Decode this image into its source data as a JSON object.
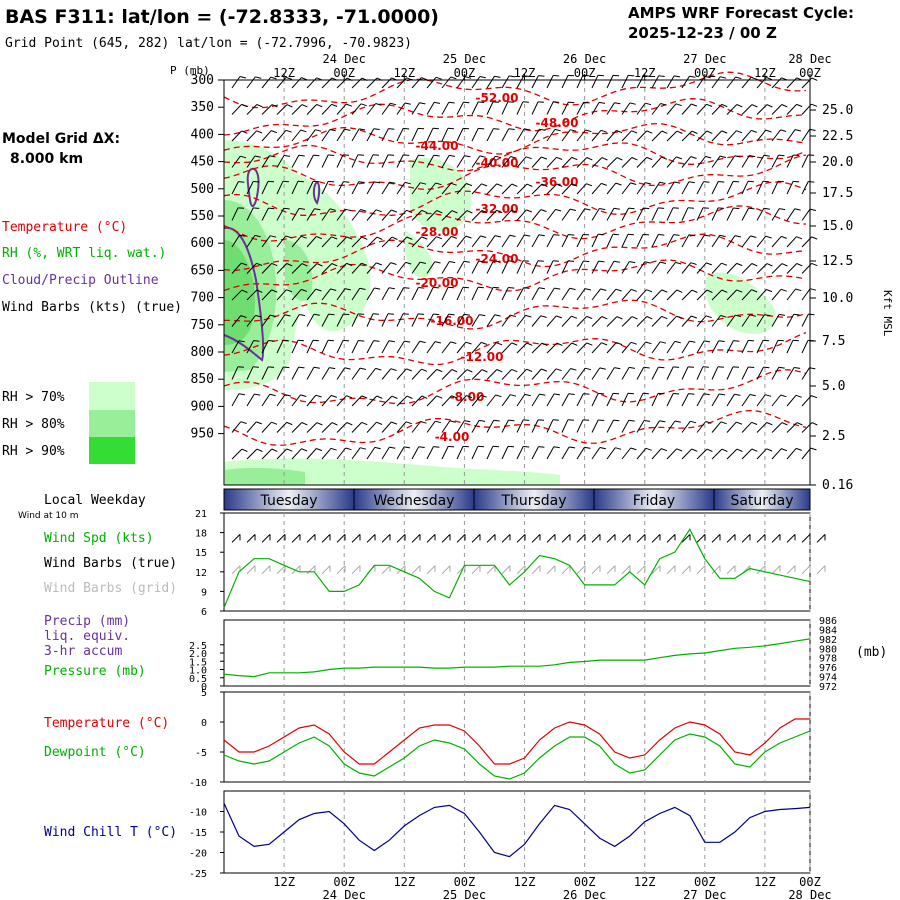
{
  "header": {
    "title": "BAS F311:  lat/lon = (-72.8333, -71.0000)",
    "subtitle": "Grid Point (645, 282) lat/lon = (-72.7996, -70.9823)",
    "cycle_line1": "AMPS WRF Forecast Cycle:",
    "cycle_line2": "2025-12-23 / 00  Z"
  },
  "side": {
    "model_grid_line1": "Model Grid ΔX:",
    "model_grid_line2": "8.000 km",
    "legend_temperature": "Temperature (°C)",
    "legend_rh": "RH (%, WRT liq. wat.)",
    "legend_cloud": "Cloud/Precip Outline",
    "legend_wind": "Wind Barbs (kts) (true)",
    "rh_70": "RH > 70%",
    "rh_80": "RH > 80%",
    "rh_90": "RH > 90%",
    "local_weekday": "Local Weekday",
    "wind_at": "Wind at 10 m",
    "wind_spd": "Wind Spd (kts)",
    "wind_barbs_true": "Wind Barbs (true)",
    "wind_barbs_grid": "Wind Barbs (grid)",
    "precip_l1": "Precip (mm)",
    "precip_l2": "liq. equiv.",
    "precip_l3": "3-hr accum",
    "pressure": "Pressure (mb)",
    "temperature": "Temperature (°C)",
    "dewpoint": "Dewpoint (°C)",
    "wind_chill": "Wind Chill T (°C)"
  },
  "colors": {
    "temperature": "#e00000",
    "rh": "#00b000",
    "cloud": "#663399",
    "wind_chill": "#00008b",
    "rh70": "#ccffcc",
    "rh80": "#99ee99",
    "rh90": "#33dd33"
  },
  "chart_data": [
    {
      "type": "contour",
      "panel": "cross-section",
      "y_axis_label": "P (mb)",
      "right_axis_label": "Kft MSL",
      "pressure_ticks": [
        "300",
        "350",
        "400",
        "450",
        "500",
        "550",
        "600",
        "650",
        "700",
        "750",
        "800",
        "850",
        "900",
        "950"
      ],
      "height_ticks": [
        "25.0",
        "22.5",
        "20.0",
        "17.5",
        "15.0",
        "12.5",
        "10.0",
        "7.5",
        "5.0",
        "2.5",
        "0.16"
      ],
      "time_ticks_top": [
        "12Z",
        "00Z",
        "12Z",
        "00Z",
        "12Z",
        "00Z",
        "12Z",
        "00Z",
        "12Z",
        "00Z"
      ],
      "date_ticks": [
        "24 Dec",
        "25 Dec",
        "26 Dec",
        "27 Dec",
        "28 Dec"
      ],
      "temperature_labels": [
        "-52.00",
        "-48.00",
        "-44.00",
        "-40.00",
        "-36.00",
        "-32.00",
        "-28.00",
        "-24.00",
        "-20.00",
        "-16.00",
        "-12.00",
        "-8.00",
        "-4.00"
      ]
    },
    {
      "type": "band",
      "panel": "weekday",
      "days": [
        "Tuesday",
        "Wednesday",
        "Thursday",
        "Friday",
        "Saturday"
      ]
    },
    {
      "type": "line",
      "panel": "wind",
      "series_name": "Wind Spd (kts)",
      "y_ticks": [
        "6",
        "9",
        "12",
        "15",
        "18",
        "21"
      ],
      "ylim": [
        6,
        21
      ],
      "x_hours": [
        0,
        3,
        6,
        9,
        12,
        15,
        18,
        21,
        24,
        27,
        30,
        33,
        36,
        39,
        42,
        45,
        48,
        51,
        54,
        57,
        60,
        63,
        66,
        69,
        72,
        75,
        78,
        81,
        84,
        87,
        90,
        93,
        96,
        99,
        102,
        105,
        108,
        111,
        114,
        117
      ],
      "values": [
        6.5,
        12,
        14,
        14,
        13,
        12,
        12,
        9,
        9,
        10,
        13,
        13,
        12,
        11,
        9,
        8,
        13,
        13,
        13,
        10,
        12,
        14.5,
        14,
        13,
        10,
        10,
        10,
        12,
        10,
        14,
        15,
        18.5,
        14,
        11,
        11,
        12.5,
        12,
        11.5,
        11,
        10.5
      ]
    },
    {
      "type": "line",
      "panel": "precip-pressure",
      "series_name": "Pressure (mb)",
      "left_ticks": [
        "0",
        "0.5",
        "1.0",
        "1.5",
        "2.0",
        "2.5"
      ],
      "right_ticks": [
        "972",
        "974",
        "976",
        "978",
        "980",
        "982",
        "984",
        "986"
      ],
      "ylim": [
        972,
        986
      ],
      "x_hours": [
        0,
        3,
        6,
        9,
        12,
        15,
        18,
        21,
        24,
        27,
        30,
        33,
        36,
        39,
        42,
        45,
        48,
        51,
        54,
        57,
        60,
        63,
        66,
        69,
        72,
        75,
        78,
        81,
        84,
        87,
        90,
        93,
        96,
        99,
        102,
        105,
        108,
        111,
        114,
        117
      ],
      "values": [
        974.5,
        974.2,
        974,
        974.8,
        974.8,
        974.8,
        975,
        975.5,
        975.8,
        975.8,
        976,
        976,
        976,
        976,
        975.8,
        975.8,
        976,
        976,
        976,
        976.2,
        976.2,
        976.2,
        976.5,
        977,
        977.2,
        977.5,
        977.5,
        977.5,
        977.5,
        978,
        978.5,
        978.8,
        979,
        979.5,
        980,
        980.2,
        980.5,
        981,
        981.5,
        982
      ]
    },
    {
      "type": "line",
      "panel": "temperature",
      "y_ticks": [
        "-10",
        "-5",
        "0",
        "5"
      ],
      "ylim": [
        -10,
        5
      ],
      "x_hours": [
        0,
        3,
        6,
        9,
        12,
        15,
        18,
        21,
        24,
        27,
        30,
        33,
        36,
        39,
        42,
        45,
        48,
        51,
        54,
        57,
        60,
        63,
        66,
        69,
        72,
        75,
        78,
        81,
        84,
        87,
        90,
        93,
        96,
        99,
        102,
        105,
        108,
        111,
        114,
        117
      ],
      "series": [
        {
          "name": "Temperature (°C)",
          "values": [
            -3,
            -5,
            -5,
            -4,
            -2.5,
            -1,
            -0.5,
            -2,
            -5,
            -7,
            -7,
            -5,
            -3,
            -1,
            -0.5,
            -0.5,
            -1.5,
            -4,
            -7,
            -7,
            -6,
            -3,
            -1,
            0,
            -0.5,
            -2,
            -5,
            -6,
            -5.5,
            -3,
            -1,
            0,
            -0.5,
            -2,
            -5,
            -5.5,
            -3.5,
            -1,
            0.5,
            0.5
          ]
        },
        {
          "name": "Dewpoint (°C)",
          "values": [
            -5.5,
            -6.5,
            -7,
            -6.5,
            -5,
            -3.5,
            -2.5,
            -4,
            -7,
            -8.5,
            -9,
            -7.5,
            -6,
            -4,
            -3,
            -3.5,
            -4.5,
            -7,
            -9,
            -9.5,
            -8.5,
            -6,
            -4,
            -2.5,
            -2.5,
            -4,
            -7,
            -8.5,
            -8,
            -5.5,
            -3,
            -2,
            -2.5,
            -4,
            -7,
            -7.5,
            -5,
            -3.5,
            -2.5,
            -1.5
          ]
        }
      ]
    },
    {
      "type": "line",
      "panel": "wind-chill",
      "series_name": "Wind Chill T (°C)",
      "y_ticks": [
        "-25",
        "-20",
        "-15",
        "-10"
      ],
      "ylim": [
        -25,
        -5
      ],
      "x_hours": [
        0,
        3,
        6,
        9,
        12,
        15,
        18,
        21,
        24,
        27,
        30,
        33,
        36,
        39,
        42,
        45,
        48,
        51,
        54,
        57,
        60,
        63,
        66,
        69,
        72,
        75,
        78,
        81,
        84,
        87,
        90,
        93,
        96,
        99,
        102,
        105,
        108,
        111,
        114,
        117
      ],
      "values": [
        -8,
        -16,
        -18.5,
        -18,
        -15,
        -12,
        -10.5,
        -10,
        -13,
        -17,
        -19.5,
        -17,
        -13.5,
        -11,
        -9,
        -8.5,
        -10.5,
        -15,
        -20,
        -21,
        -18,
        -13,
        -8.5,
        -9.5,
        -13,
        -16.5,
        -18.5,
        -16,
        -12.5,
        -10.5,
        -9,
        -11,
        -17.5,
        -17.5,
        -15,
        -11.5,
        -10,
        -9.5,
        -9.3,
        -9
      ]
    }
  ]
}
